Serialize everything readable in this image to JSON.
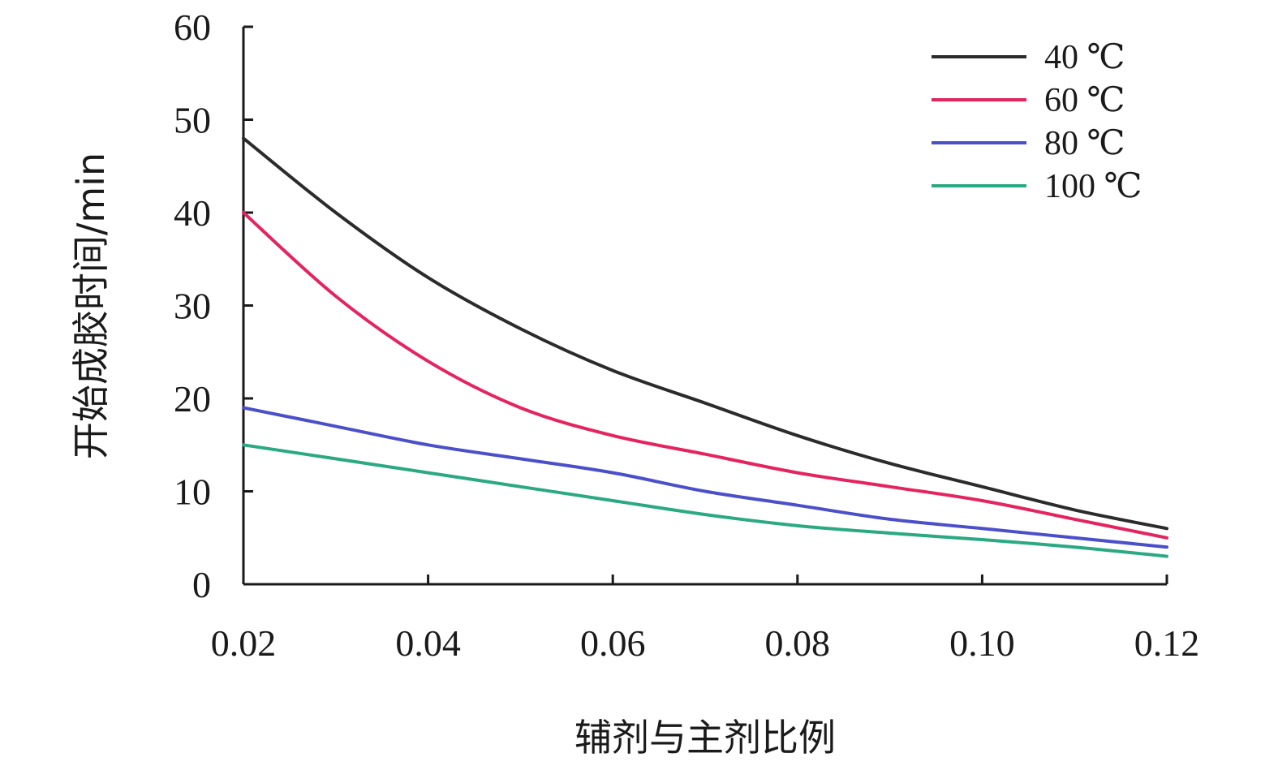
{
  "chart_data": {
    "type": "line",
    "title": "",
    "xlabel": "辅剂与主剂比例",
    "ylabel": "开始成胶时间/min",
    "xlim": [
      0.02,
      0.12
    ],
    "ylim": [
      0,
      60
    ],
    "x_ticks": [
      "0.02",
      "0.04",
      "0.06",
      "0.08",
      "0.10",
      "0.12"
    ],
    "y_ticks": [
      "0",
      "10",
      "20",
      "30",
      "40",
      "50",
      "60"
    ],
    "grid": false,
    "legend_position": "top-right",
    "x": [
      0.02,
      0.03,
      0.04,
      0.05,
      0.06,
      0.07,
      0.08,
      0.09,
      0.1,
      0.11,
      0.12
    ],
    "series": [
      {
        "name": "40 ℃",
        "color": "#2b2b2b",
        "values": [
          48,
          40,
          33,
          27.5,
          23,
          19.5,
          16,
          13,
          10.5,
          8,
          6
        ]
      },
      {
        "name": "60 ℃",
        "color": "#e5245f",
        "values": [
          40,
          31,
          24,
          19,
          16,
          14,
          12,
          10.5,
          9,
          7,
          5
        ]
      },
      {
        "name": "80 ℃",
        "color": "#4b4fc9",
        "values": [
          19,
          17,
          15,
          13.5,
          12,
          10,
          8.5,
          7,
          6,
          5,
          4
        ]
      },
      {
        "name": "100 ℃",
        "color": "#2aa982",
        "values": [
          15,
          13.5,
          12,
          10.5,
          9,
          7.5,
          6.3,
          5.5,
          4.8,
          4,
          3
        ]
      }
    ]
  }
}
